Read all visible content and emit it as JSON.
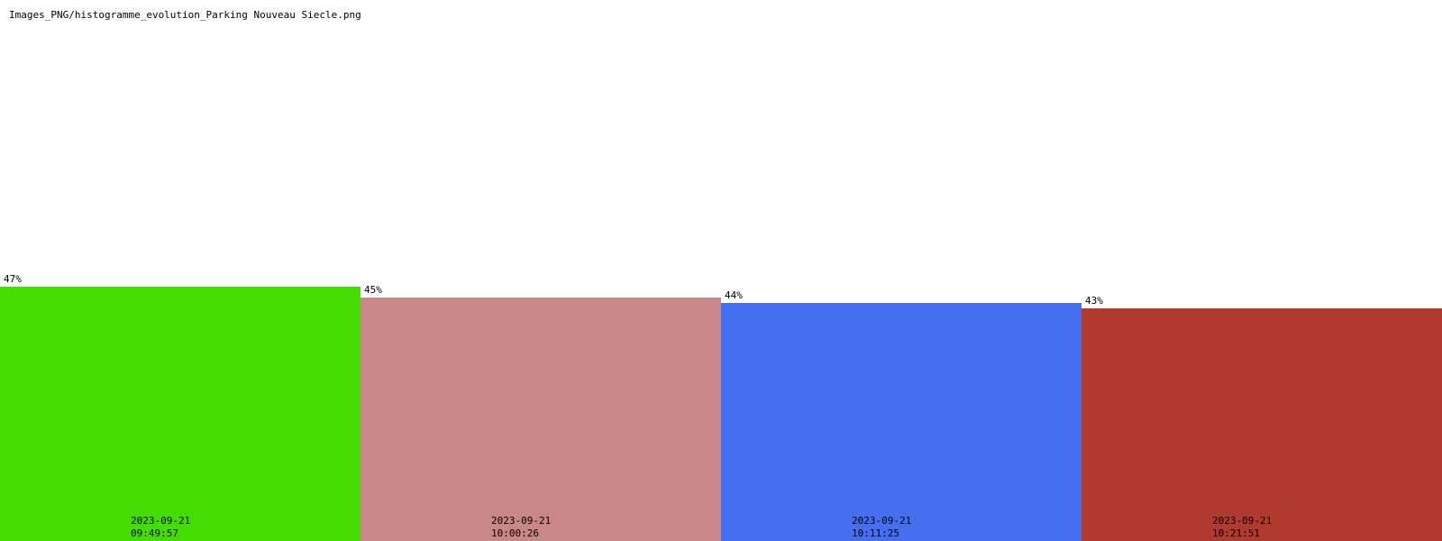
{
  "chart_data": {
    "type": "bar",
    "title": "Images_PNG/histogramme_evolution_Parking Nouveau Siecle.png",
    "categories": [
      [
        "2023-09-21",
        "09:49:57"
      ],
      [
        "2023-09-21",
        "10:00:26"
      ],
      [
        "2023-09-21",
        "10:11:25"
      ],
      [
        "2023-09-21",
        "10:21:51"
      ]
    ],
    "values": [
      47,
      45,
      44,
      43
    ],
    "value_suffix": "%",
    "colors": [
      "#44dd00",
      "#c98787",
      "#4470f0",
      "#b03a2e"
    ],
    "ylim": [
      0,
      100
    ],
    "grid": false,
    "legend": "none",
    "xlabel": "",
    "ylabel": ""
  }
}
